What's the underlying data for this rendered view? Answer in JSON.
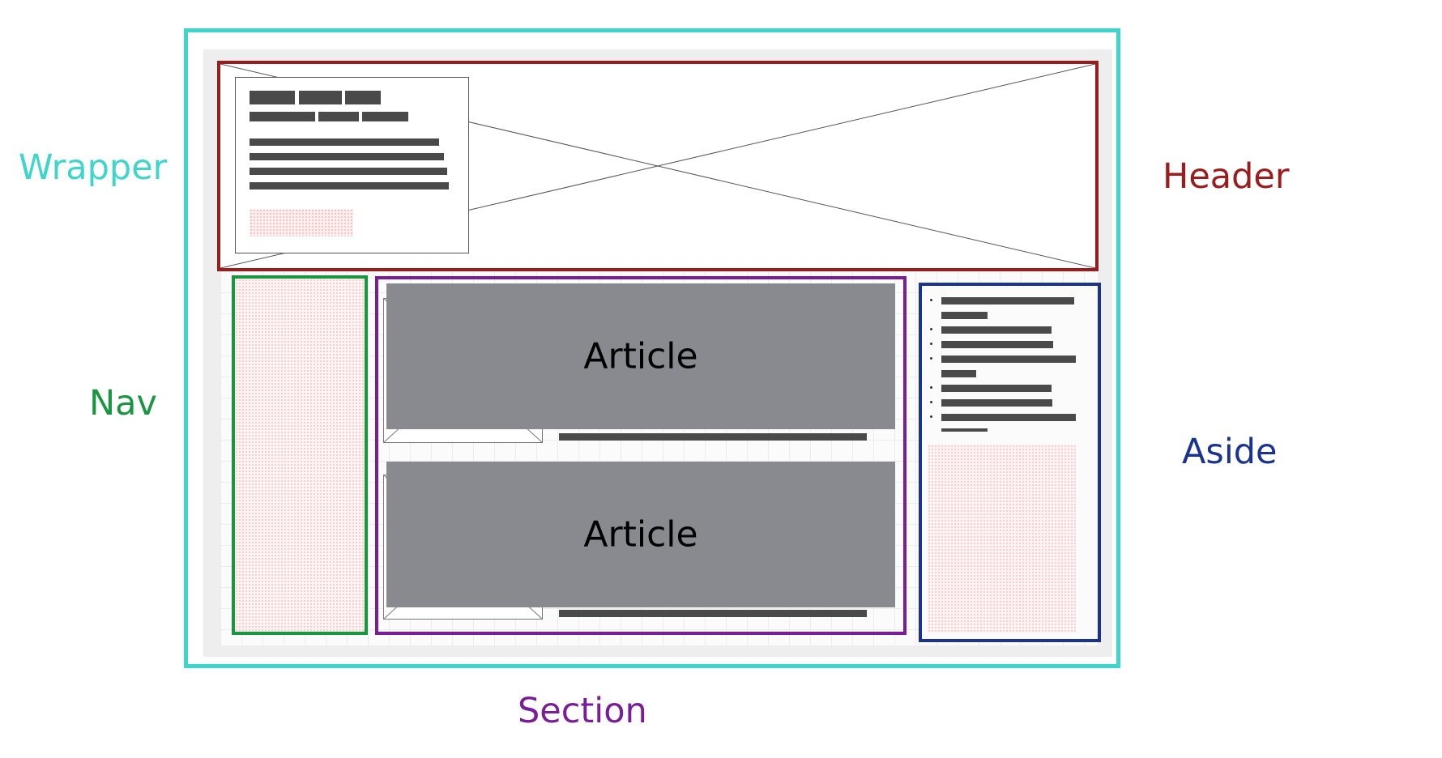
{
  "labels": {
    "wrapper": "Wrapper",
    "header": "Header",
    "nav": "Nav",
    "aside": "Aside",
    "section": "Section"
  },
  "articles": [
    {
      "label": "Article"
    },
    {
      "label": "Article"
    }
  ],
  "colors": {
    "wrapper": "#3ed6cc",
    "header": "#9b1c1c",
    "nav": "#1a9640",
    "section": "#7a1e98",
    "aside": "#1a338f",
    "article_fill": "#888a90",
    "placeholder_bar": "#4a4a4a"
  },
  "icons": {
    "header_image": "image-placeholder-cross",
    "article_thumbnail": "image-placeholder-thumbnail"
  }
}
